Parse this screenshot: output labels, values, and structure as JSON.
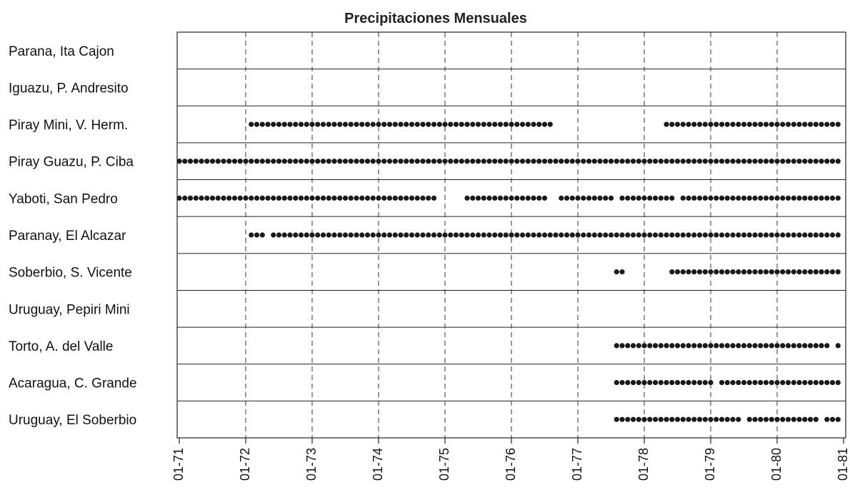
{
  "chart_data": {
    "type": "scatter",
    "title": "Precipitaciones Mensuales",
    "xlabel": "",
    "ylabel": "",
    "x_ticks": [
      "01-71",
      "01-72",
      "01-73",
      "01-74",
      "01-75",
      "01-76",
      "01-77",
      "01-78",
      "01-79",
      "01-80",
      "01-81"
    ],
    "xlim": [
      "1971-01",
      "1981-01"
    ],
    "grid": "vertical dashed at ticks",
    "marker_color": "#1a1a1a",
    "rows": [
      {
        "label": "Parana, Ita Cajon",
        "runs": []
      },
      {
        "label": "Iguazu, P. Andresito",
        "runs": []
      },
      {
        "label": "Piray Mini, V. Herm.",
        "runs": [
          [
            "1972-02",
            "1976-08"
          ],
          [
            "1978-05",
            "1980-12"
          ]
        ]
      },
      {
        "label": "Piray Guazu, P. Ciba",
        "runs": [
          [
            "1971-01",
            "1980-12"
          ]
        ]
      },
      {
        "label": "Yaboti, San Pedro",
        "runs": [
          [
            "1971-01",
            "1974-11"
          ],
          [
            "1975-05",
            "1976-07"
          ],
          [
            "1976-10",
            "1977-07"
          ],
          [
            "1977-09",
            "1978-06"
          ],
          [
            "1978-08",
            "1980-12"
          ]
        ]
      },
      {
        "label": "Paranay, El Alcazar",
        "runs": [
          [
            "1972-02",
            "1972-04"
          ],
          [
            "1972-06",
            "1980-12"
          ]
        ]
      },
      {
        "label": "Soberbio, S. Vicente",
        "runs": [
          [
            "1977-08",
            "1977-09"
          ],
          [
            "1978-06",
            "1980-12"
          ]
        ]
      },
      {
        "label": "Uruguay, Pepiri Mini",
        "runs": []
      },
      {
        "label": "Torto, A. del Valle",
        "runs": [
          [
            "1977-08",
            "1980-10"
          ],
          [
            "1980-12",
            "1980-12"
          ]
        ]
      },
      {
        "label": "Acaragua, C. Grande",
        "runs": [
          [
            "1977-08",
            "1979-01"
          ],
          [
            "1979-03",
            "1980-12"
          ]
        ]
      },
      {
        "label": "Uruguay, El Soberbio",
        "runs": [
          [
            "1977-08",
            "1979-06"
          ],
          [
            "1979-08",
            "1980-08"
          ],
          [
            "1980-10",
            "1980-12"
          ]
        ]
      }
    ]
  }
}
